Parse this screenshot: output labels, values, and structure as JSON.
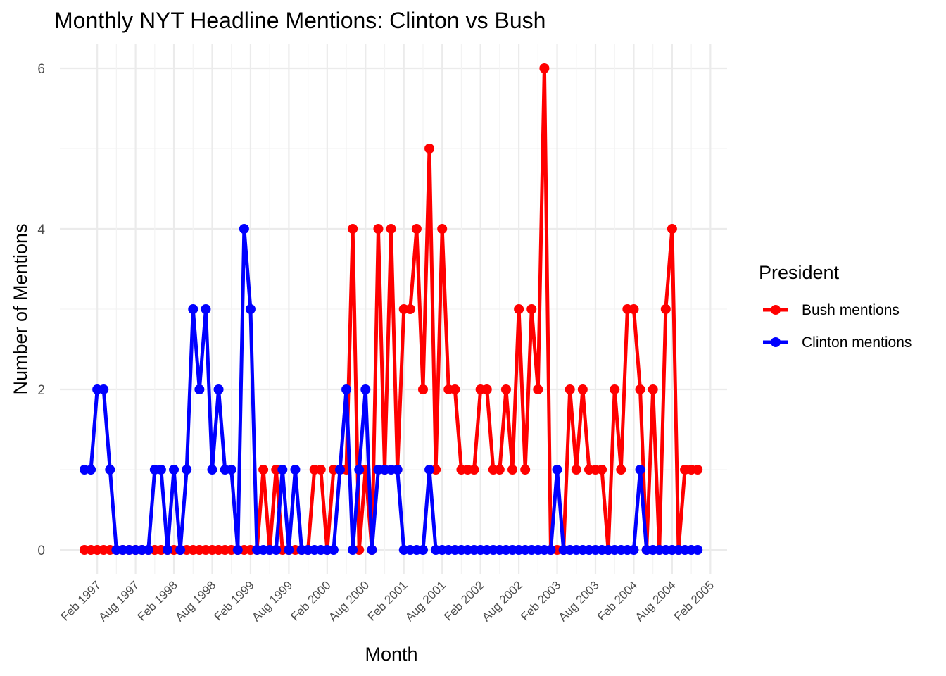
{
  "chart_data": {
    "type": "line",
    "title": "Monthly NYT Headline Mentions: Clinton vs Bush",
    "xlabel": "Month",
    "ylabel": "Number of Mentions",
    "x_start": "1996-12",
    "x_end": "2004-12",
    "x_ticks": [
      "Feb 1997",
      "Aug 1997",
      "Feb 1998",
      "Aug 1998",
      "Feb 1999",
      "Aug 1999",
      "Feb 2000",
      "Aug 2000",
      "Feb 2001",
      "Aug 2001",
      "Feb 2002",
      "Aug 2002",
      "Feb 2003",
      "Aug 2003",
      "Feb 2004",
      "Aug 2004",
      "Feb 2005"
    ],
    "y_ticks": [
      0,
      2,
      4,
      6
    ],
    "ylim": [
      -0.25,
      6.3
    ],
    "grid": true,
    "legend": {
      "title": "President",
      "position": "right"
    },
    "series": [
      {
        "name": "Bush mentions",
        "color": "#ff0000",
        "values": [
          0,
          0,
          0,
          0,
          0,
          0,
          0,
          0,
          0,
          0,
          0,
          0,
          0,
          0,
          0,
          0,
          0,
          0,
          0,
          0,
          0,
          0,
          0,
          0,
          0,
          0,
          0,
          0,
          1,
          0,
          1,
          0,
          0,
          0,
          0,
          0,
          1,
          1,
          0,
          1,
          1,
          1,
          4,
          0,
          1,
          0,
          4,
          1,
          4,
          1,
          3,
          3,
          4,
          2,
          5,
          1,
          4,
          2,
          2,
          1,
          1,
          1,
          2,
          2,
          1,
          1,
          2,
          1,
          3,
          1,
          3,
          2,
          6,
          0,
          0,
          0,
          2,
          1,
          2,
          1,
          1,
          1,
          0,
          2,
          1,
          3,
          3,
          2,
          0,
          2,
          0,
          3,
          4,
          0,
          1,
          1,
          1
        ]
      },
      {
        "name": "Clinton mentions",
        "color": "#0000ff",
        "values": [
          1,
          1,
          2,
          2,
          1,
          0,
          0,
          0,
          0,
          0,
          0,
          1,
          1,
          0,
          1,
          0,
          1,
          3,
          2,
          3,
          1,
          2,
          1,
          1,
          0,
          4,
          3,
          0,
          0,
          0,
          0,
          1,
          0,
          1,
          0,
          0,
          0,
          0,
          0,
          0,
          1,
          2,
          0,
          1,
          2,
          0,
          1,
          1,
          1,
          1,
          0,
          0,
          0,
          0,
          1,
          0,
          0,
          0,
          0,
          0,
          0,
          0,
          0,
          0,
          0,
          0,
          0,
          0,
          0,
          0,
          0,
          0,
          0,
          0,
          1,
          0,
          0,
          0,
          0,
          0,
          0,
          0,
          0,
          0,
          0,
          0,
          0,
          1,
          0,
          0,
          0,
          0,
          0,
          0,
          0,
          0,
          0
        ]
      }
    ]
  }
}
